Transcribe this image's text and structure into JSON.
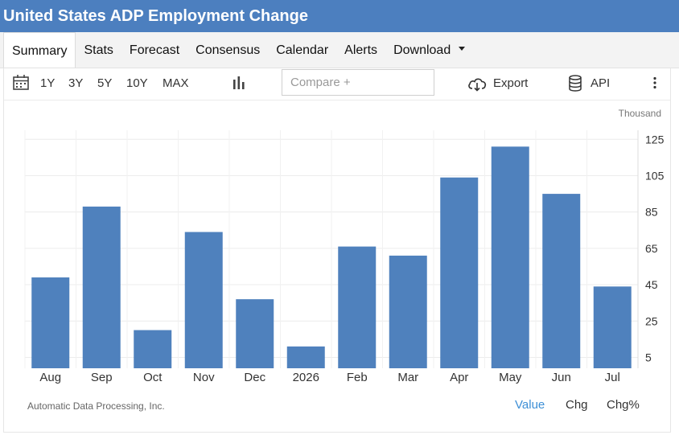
{
  "header": {
    "title": "United States ADP Employment Change"
  },
  "tabs": [
    {
      "label": "Summary"
    },
    {
      "label": "Stats"
    },
    {
      "label": "Forecast"
    },
    {
      "label": "Consensus"
    },
    {
      "label": "Calendar"
    },
    {
      "label": "Alerts"
    },
    {
      "label": "Download"
    }
  ],
  "toolbar": {
    "ranges": [
      "1Y",
      "3Y",
      "5Y",
      "10Y",
      "MAX"
    ],
    "compare_placeholder": "Compare +",
    "export_label": "Export",
    "api_label": "API"
  },
  "icons": {
    "calendar": "calendar-icon",
    "chart_type": "bar-chart-icon",
    "export": "cloud-download-icon",
    "api": "database-icon",
    "more": "more-vertical-icon"
  },
  "chart_data": {
    "type": "bar",
    "unit": "Thousand",
    "categories": [
      "Aug",
      "Sep",
      "Oct",
      "Nov",
      "Dec",
      "2026",
      "Feb",
      "Mar",
      "Apr",
      "May",
      "Jun",
      "Jul"
    ],
    "values": [
      49,
      88,
      20,
      74,
      37,
      11,
      66,
      61,
      104,
      121,
      95,
      44
    ],
    "yticks": [
      5,
      25,
      45,
      65,
      85,
      105,
      125
    ],
    "ylim": [
      -1,
      130
    ],
    "bar_color": "#4f81bd",
    "grid": true,
    "y_axis_side": "right"
  },
  "footer": {
    "source": "Automatic Data Processing, Inc.",
    "modes": [
      "Value",
      "Chg",
      "Chg%"
    ],
    "active_mode": "Value"
  }
}
